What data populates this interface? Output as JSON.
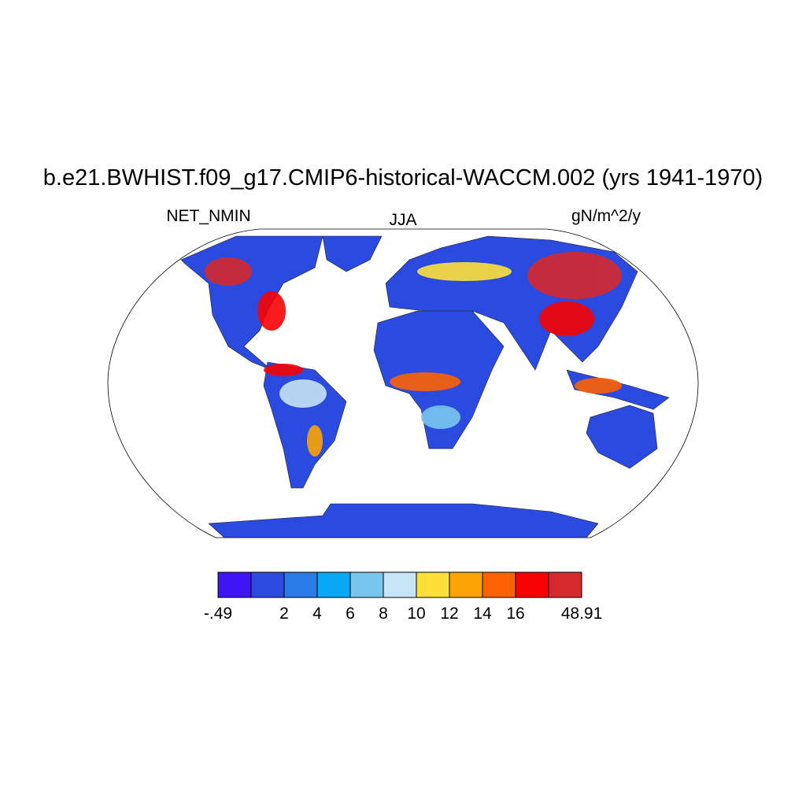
{
  "title": "b.e21.BWHIST.f09_g17.CMIP6-historical-WACCM.002 (yrs 1941-1970)",
  "left_string": "NET_NMIN",
  "center_string": "JJA",
  "right_string": "gN/m^2/y",
  "colorbar": {
    "colors": [
      "#3f14f5",
      "#2b4be0",
      "#2a7ae8",
      "#0aa9f7",
      "#78c6ee",
      "#c6e4f5",
      "#fde13a",
      "#fba404",
      "#fc6203",
      "#f70303",
      "#d52a2d"
    ],
    "labels": [
      "-.49",
      null,
      "2",
      "4",
      "6",
      "8",
      "10",
      "12",
      "14",
      "16",
      null,
      "48.91"
    ]
  }
}
